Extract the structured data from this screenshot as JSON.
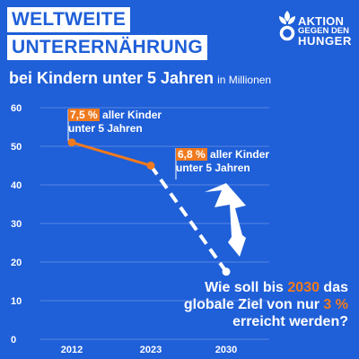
{
  "header": {
    "title_line1": "WELTWEITE",
    "title_line2": "UNTERERNÄHRUNG",
    "subtitle": "bei Kindern unter 5 Jahren",
    "unit": "in Millionen"
  },
  "logo": {
    "line1": "AKTION",
    "line2": "GEGEN DEN",
    "line3": "HUNGER",
    "icon": "wheat-person-icon"
  },
  "colors": {
    "background": "#1f5fd8",
    "accent": "#ef7a1f",
    "text": "#ffffff"
  },
  "annotations": {
    "a1": {
      "value": "7,5 %",
      "text_line1": "aller Kinder",
      "text_line2": "unter 5 Jahren"
    },
    "a2": {
      "value": "6,8 %",
      "text_line1": "aller Kinder",
      "text_line2": "unter 5 Jahren"
    }
  },
  "question": {
    "p1": "Wie soll bis ",
    "year": "2030",
    "p2": " das",
    "p3": "globale Ziel von nur ",
    "target": "3 %",
    "p4": "erreicht werden?"
  },
  "chart_data": {
    "type": "line",
    "x": [
      "2012",
      "2023",
      "2030"
    ],
    "series": [
      {
        "values": [
          51,
          45,
          null
        ],
        "style": "solid",
        "color": "#ef7a1f"
      },
      {
        "values": [
          null,
          45,
          17.5
        ],
        "style": "dashed",
        "color": "#ffffff"
      }
    ],
    "ylim": [
      0,
      60
    ],
    "yticks": [
      "0",
      "10",
      "20",
      "30",
      "40",
      "50",
      "60"
    ],
    "grid": true
  }
}
